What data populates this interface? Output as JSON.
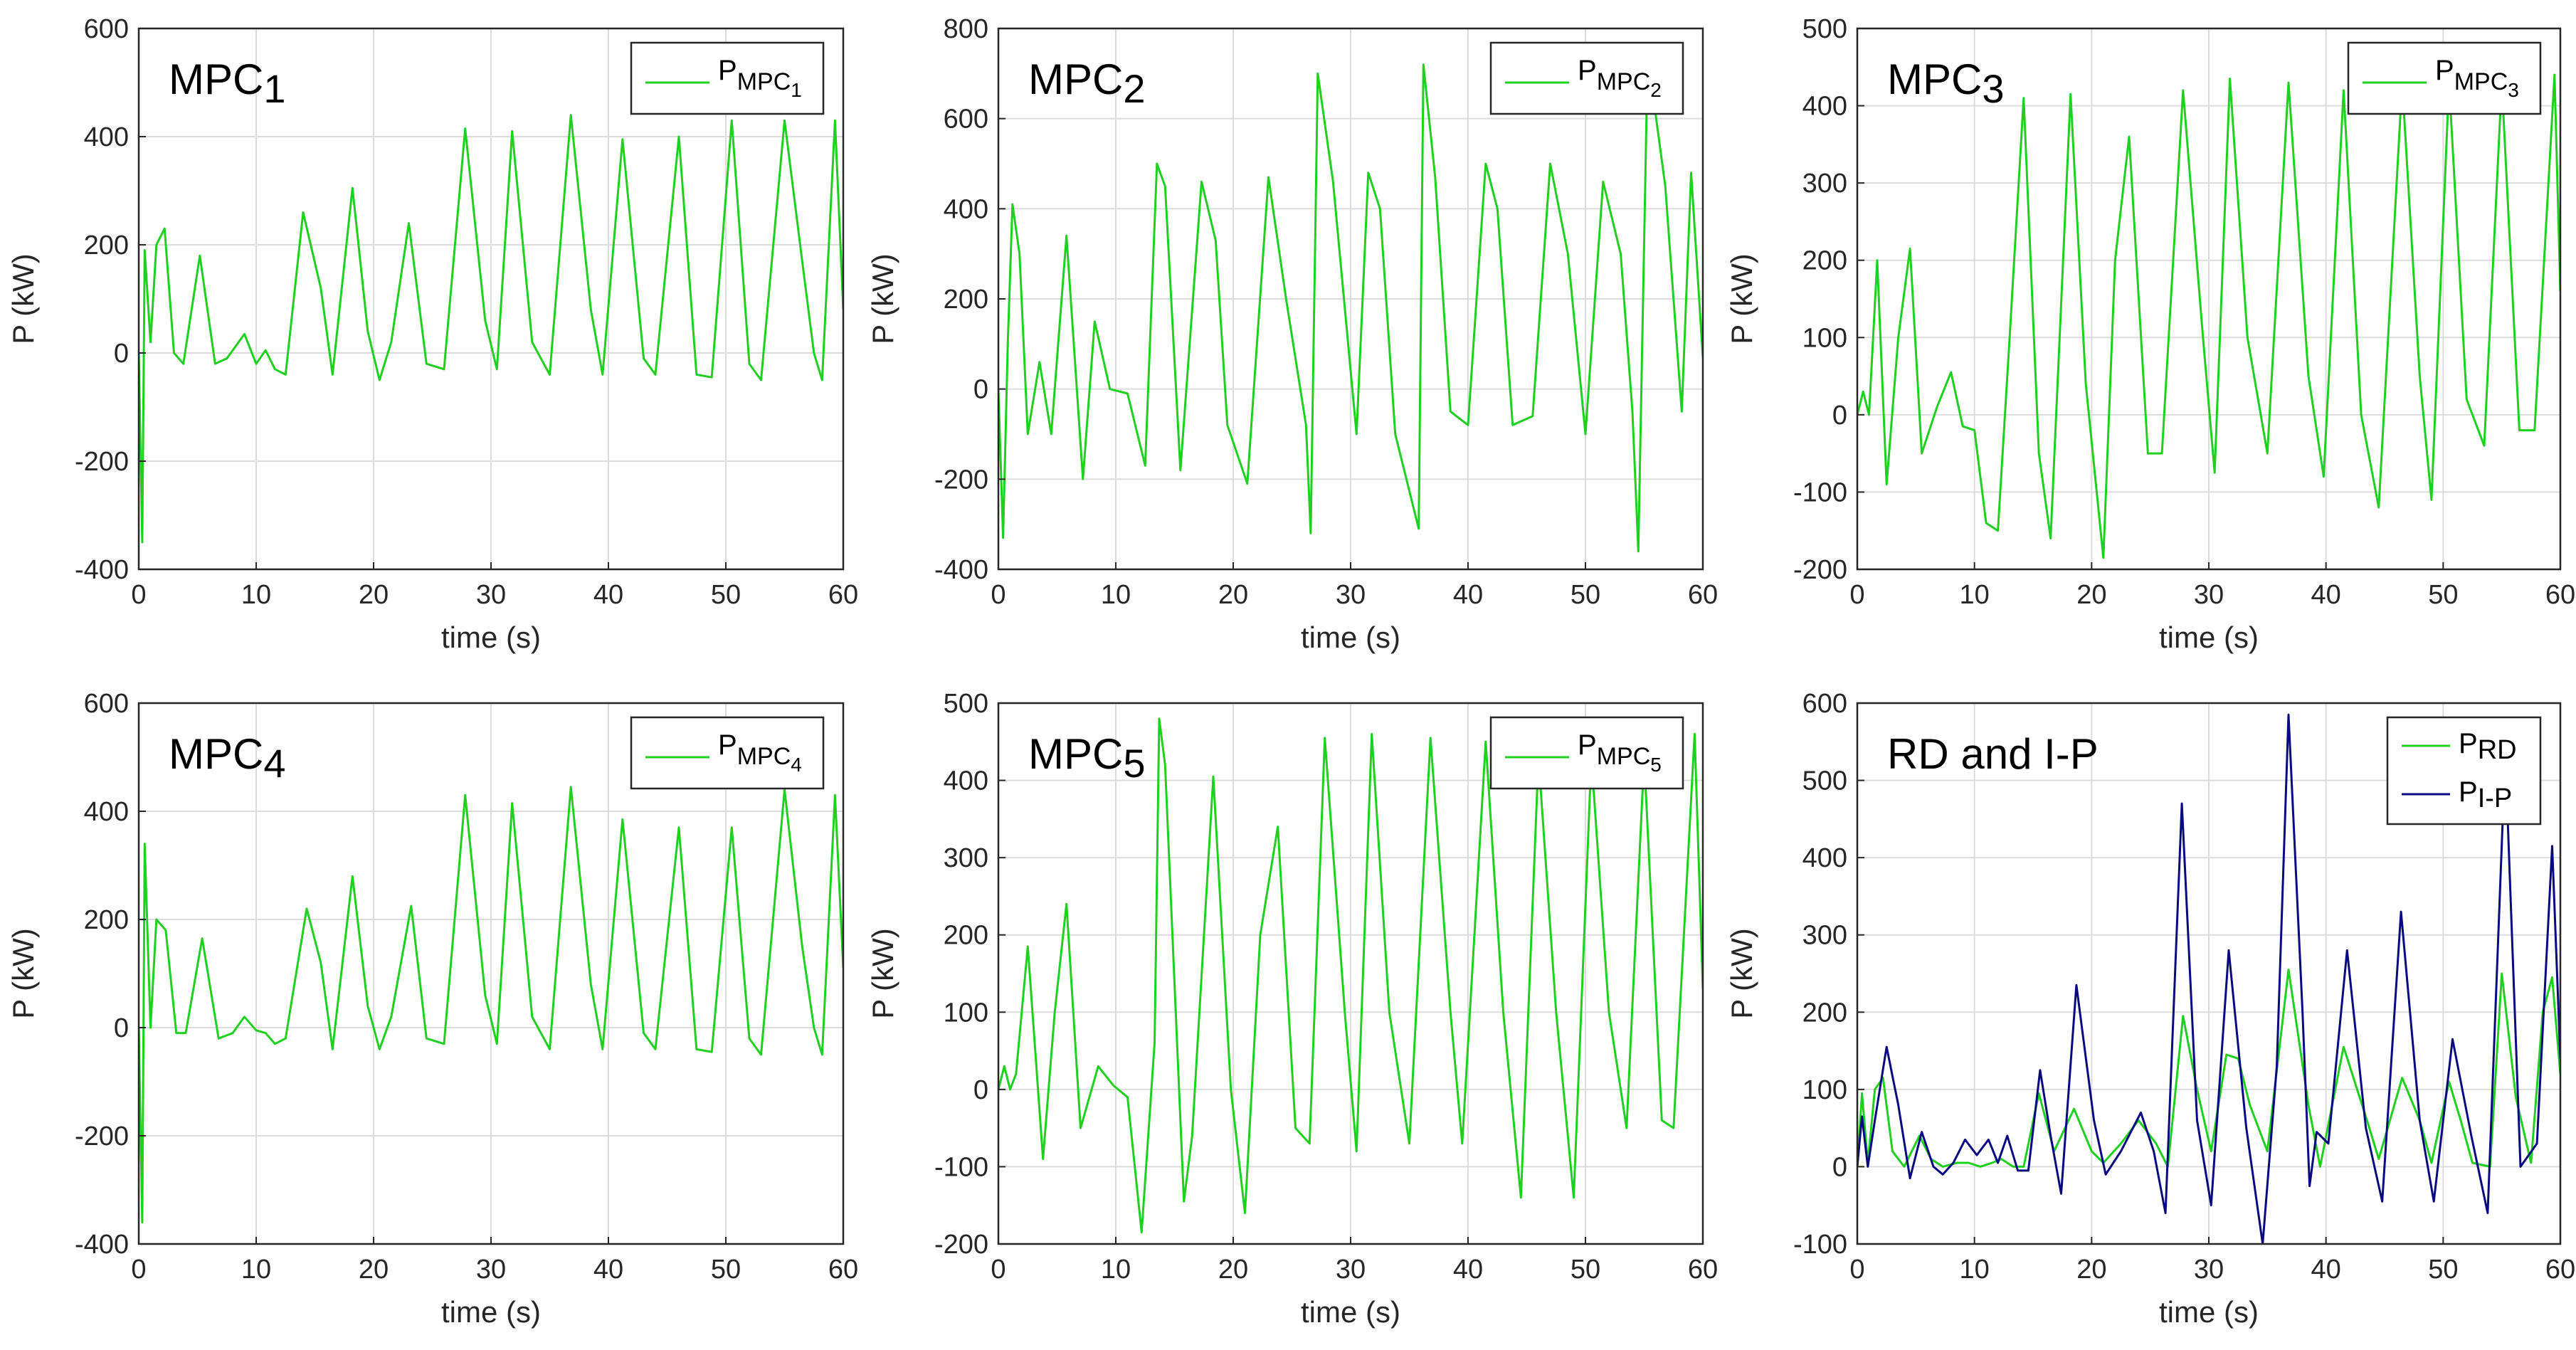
{
  "figure": {
    "colors": {
      "green": "#1fd11f",
      "navy": "#0a0a80",
      "grid": "#dcdcdc",
      "axis": "#262626"
    }
  },
  "chart_data": [
    {
      "type": "line",
      "title_main": "MPC",
      "title_sub": "1",
      "xlabel": "time (s)",
      "ylabel": "P (kW)",
      "xlim": [
        0,
        60
      ],
      "ylim": [
        -400,
        600
      ],
      "xticks": [
        0,
        10,
        20,
        30,
        40,
        50,
        60
      ],
      "yticks": [
        -400,
        -200,
        0,
        200,
        400,
        600
      ],
      "grid": true,
      "legend_position": "top-right",
      "series": [
        {
          "name": "P",
          "sub": "MPC",
          "subsub": "1",
          "color": "#1fd11f",
          "x": [
            0,
            0.3,
            0.5,
            1,
            1.5,
            2.2,
            3,
            3.8,
            5.2,
            6.5,
            7.5,
            9,
            10,
            10.8,
            11.6,
            12.5,
            14,
            15.5,
            16.5,
            18.2,
            19.5,
            20.5,
            21.5,
            23,
            24.5,
            26,
            27.8,
            29.5,
            30.5,
            31.8,
            33.5,
            35,
            36.8,
            38.5,
            39.5,
            41.2,
            43,
            44,
            46,
            47.5,
            48.8,
            50.5,
            52,
            53,
            55,
            56.5,
            57.5,
            58.2,
            59.3,
            60
          ],
          "y": [
            0,
            -350,
            190,
            20,
            200,
            230,
            0,
            -20,
            180,
            -20,
            -10,
            35,
            -20,
            5,
            -30,
            -40,
            260,
            120,
            -40,
            305,
            40,
            -50,
            20,
            240,
            -20,
            -30,
            415,
            60,
            -30,
            410,
            20,
            -40,
            440,
            80,
            -40,
            395,
            -10,
            -40,
            400,
            -40,
            -45,
            430,
            -20,
            -50,
            430,
            170,
            0,
            -50,
            430,
            80
          ]
        }
      ]
    },
    {
      "type": "line",
      "title_main": "MPC",
      "title_sub": "2",
      "xlabel": "time (s)",
      "ylabel": "P (kW)",
      "xlim": [
        0,
        60
      ],
      "ylim": [
        -400,
        800
      ],
      "xticks": [
        0,
        10,
        20,
        30,
        40,
        50,
        60
      ],
      "yticks": [
        -400,
        -200,
        0,
        200,
        400,
        600,
        800
      ],
      "grid": true,
      "legend_position": "top-right",
      "series": [
        {
          "name": "P",
          "sub": "MPC",
          "subsub": "2",
          "color": "#1fd11f",
          "x": [
            0,
            0.4,
            0.8,
            1.2,
            1.8,
            2.5,
            3.5,
            4.5,
            5.8,
            7.2,
            8.2,
            9.5,
            11,
            12.5,
            13.5,
            14.2,
            15.5,
            17.3,
            18.5,
            19.5,
            21.2,
            23,
            24.5,
            26.2,
            26.6,
            27.2,
            28.5,
            30.5,
            31.5,
            32.5,
            33.8,
            35.8,
            36.2,
            37.2,
            38.5,
            40,
            41.5,
            42.5,
            43.8,
            45.5,
            47,
            48.5,
            50,
            51.5,
            53,
            54,
            54.5,
            55.3,
            56.8,
            58.2,
            59,
            60
          ],
          "y": [
            0,
            -330,
            100,
            410,
            300,
            -100,
            60,
            -100,
            340,
            -200,
            150,
            0,
            -10,
            -170,
            500,
            450,
            -180,
            460,
            330,
            -80,
            -210,
            470,
            200,
            -80,
            -320,
            700,
            460,
            -100,
            480,
            400,
            -100,
            -310,
            720,
            470,
            -50,
            -80,
            500,
            400,
            -80,
            -60,
            500,
            300,
            -100,
            460,
            300,
            -50,
            -360,
            740,
            450,
            -50,
            480,
            70
          ]
        }
      ]
    },
    {
      "type": "line",
      "title_main": "MPC",
      "title_sub": "3",
      "xlabel": "time (s)",
      "ylabel": "P (kW)",
      "xlim": [
        0,
        60
      ],
      "ylim": [
        -200,
        500
      ],
      "xticks": [
        0,
        10,
        20,
        30,
        40,
        50,
        60
      ],
      "yticks": [
        -200,
        -100,
        0,
        100,
        200,
        300,
        400,
        500
      ],
      "grid": true,
      "legend_position": "top-right",
      "series": [
        {
          "name": "P",
          "sub": "MPC",
          "subsub": "3",
          "color": "#1fd11f",
          "x": [
            0,
            0.5,
            1,
            1.7,
            2.5,
            3.5,
            4.5,
            5.5,
            6.8,
            8,
            9,
            10,
            11,
            12,
            13,
            14.2,
            15.5,
            16.5,
            18.2,
            19.5,
            21,
            22,
            23.2,
            24.8,
            26,
            27.8,
            29.5,
            30.5,
            31.8,
            33.3,
            35,
            36.8,
            38.5,
            39.8,
            41.5,
            43,
            44.5,
            46.5,
            48,
            49,
            50.5,
            52,
            53.5,
            55,
            56.5,
            57.8,
            59.5,
            60
          ],
          "y": [
            0,
            30,
            0,
            200,
            -90,
            100,
            215,
            -50,
            10,
            55,
            -15,
            -20,
            -140,
            -150,
            100,
            410,
            -50,
            -160,
            415,
            40,
            -185,
            200,
            360,
            -50,
            -50,
            420,
            100,
            -75,
            435,
            100,
            -50,
            430,
            50,
            -80,
            420,
            0,
            -120,
            430,
            50,
            -110,
            430,
            20,
            -40,
            430,
            -20,
            -20,
            440,
            160
          ]
        }
      ]
    },
    {
      "type": "line",
      "title_main": "MPC",
      "title_sub": "4",
      "xlabel": "time (s)",
      "ylabel": "P (kW)",
      "xlim": [
        0,
        60
      ],
      "ylim": [
        -400,
        600
      ],
      "xticks": [
        0,
        10,
        20,
        30,
        40,
        50,
        60
      ],
      "yticks": [
        -400,
        -200,
        0,
        200,
        400,
        600
      ],
      "grid": true,
      "legend_position": "top-right",
      "series": [
        {
          "name": "P",
          "sub": "MPC",
          "subsub": "4",
          "color": "#1fd11f",
          "x": [
            0,
            0.3,
            0.5,
            1,
            1.5,
            2.3,
            3.2,
            4,
            5.4,
            6.8,
            8,
            9,
            10,
            10.8,
            11.6,
            12.5,
            14.3,
            15.5,
            16.5,
            18.2,
            19.5,
            20.5,
            21.5,
            23.2,
            24.5,
            26,
            27.8,
            29.5,
            30.5,
            31.8,
            33.5,
            35,
            36.8,
            38.5,
            39.5,
            41.2,
            43,
            44,
            46,
            47.5,
            48.8,
            50.5,
            52,
            53,
            55,
            56.5,
            57.5,
            58.2,
            59.3,
            60
          ],
          "y": [
            0,
            -360,
            340,
            0,
            200,
            180,
            -10,
            -10,
            165,
            -20,
            -10,
            20,
            -5,
            -10,
            -30,
            -20,
            220,
            120,
            -40,
            280,
            40,
            -40,
            20,
            225,
            -20,
            -30,
            430,
            60,
            -30,
            415,
            20,
            -40,
            445,
            80,
            -40,
            385,
            -10,
            -40,
            370,
            -40,
            -45,
            370,
            -20,
            -50,
            440,
            150,
            0,
            -50,
            430,
            110
          ]
        }
      ]
    },
    {
      "type": "line",
      "title_main": "MPC",
      "title_sub": "5",
      "xlabel": "time (s)",
      "ylabel": "P (kW)",
      "xlim": [
        0,
        60
      ],
      "ylim": [
        -200,
        500
      ],
      "xticks": [
        0,
        10,
        20,
        30,
        40,
        50,
        60
      ],
      "yticks": [
        -200,
        -100,
        0,
        100,
        200,
        300,
        400,
        500
      ],
      "grid": true,
      "legend_position": "top-right",
      "series": [
        {
          "name": "P",
          "sub": "MPC",
          "subsub": "5",
          "color": "#1fd11f",
          "x": [
            0,
            0.5,
            1,
            1.5,
            2.5,
            3.8,
            4.8,
            5.8,
            7,
            8.5,
            9.8,
            11,
            12.2,
            13.3,
            13.7,
            14.2,
            15.8,
            16.5,
            18.3,
            19.8,
            21,
            22.3,
            23.8,
            25.3,
            26.5,
            27.8,
            29.5,
            30.5,
            31.8,
            33.3,
            35,
            36.8,
            38.5,
            39.5,
            41.5,
            43,
            44.5,
            46,
            47.5,
            49,
            50.5,
            52,
            53.5,
            55,
            56.5,
            57.5,
            59.3,
            60
          ],
          "y": [
            0,
            30,
            0,
            20,
            185,
            -90,
            100,
            240,
            -50,
            30,
            5,
            -10,
            -185,
            60,
            480,
            420,
            -145,
            -60,
            405,
            0,
            -160,
            200,
            340,
            -50,
            -70,
            455,
            100,
            -80,
            460,
            100,
            -70,
            455,
            100,
            -70,
            450,
            100,
            -140,
            430,
            100,
            -140,
            430,
            100,
            -50,
            430,
            -40,
            -50,
            460,
            130
          ]
        }
      ]
    },
    {
      "type": "line",
      "title_main": "RD and I-P",
      "title_sub": "",
      "xlabel": "time (s)",
      "ylabel": "P (kW)",
      "xlim": [
        0,
        60
      ],
      "ylim": [
        -100,
        600
      ],
      "xticks": [
        0,
        10,
        20,
        30,
        40,
        50,
        60
      ],
      "yticks": [
        -100,
        0,
        100,
        200,
        300,
        400,
        500,
        600
      ],
      "grid": true,
      "legend_position": "top-right",
      "series": [
        {
          "name": "P",
          "sub": "RD",
          "subsub": "",
          "color": "#1fd11f",
          "x": [
            0,
            0.4,
            0.9,
            1.5,
            2.2,
            3,
            4,
            5.3,
            6.3,
            7.3,
            8.5,
            9.5,
            10.5,
            11.5,
            12.3,
            13.3,
            14.2,
            15.5,
            16.8,
            18.5,
            20,
            21,
            22.5,
            24,
            25.5,
            26.5,
            27.8,
            29,
            30.2,
            31.5,
            32.5,
            33.5,
            35,
            36.8,
            38.5,
            39.5,
            41.5,
            43.5,
            44.5,
            46.5,
            48,
            49,
            50.5,
            51.5,
            52.5,
            54,
            55,
            56.2,
            57.5,
            58.5,
            59.3,
            60
          ],
          "y": [
            0,
            95,
            5,
            100,
            115,
            20,
            0,
            40,
            10,
            0,
            5,
            5,
            0,
            5,
            10,
            0,
            0,
            95,
            20,
            75,
            20,
            5,
            30,
            60,
            30,
            0,
            195,
            100,
            20,
            145,
            140,
            80,
            20,
            255,
            80,
            0,
            155,
            60,
            10,
            115,
            60,
            5,
            110,
            60,
            5,
            0,
            250,
            90,
            5,
            200,
            245,
            120
          ]
        },
        {
          "name": "P",
          "sub": "I-P",
          "subsub": "",
          "color": "#0a0a80",
          "x": [
            0,
            0.4,
            0.9,
            1.5,
            2.5,
            3.5,
            4.5,
            5.5,
            6.5,
            7.3,
            8.2,
            9.2,
            10.2,
            11.2,
            12,
            12.8,
            13.7,
            14.6,
            15.6,
            16.5,
            17.4,
            18.7,
            20.2,
            21.2,
            22.5,
            24.2,
            25.3,
            26.3,
            27.7,
            29,
            30.2,
            31.7,
            33.2,
            34.6,
            35.8,
            36.8,
            38,
            38.6,
            39.2,
            40.2,
            41.8,
            43.4,
            44.8,
            46.4,
            48,
            49.2,
            50.8,
            52.4,
            53.8,
            55.3,
            56.6,
            58,
            59.3,
            60
          ],
          "y": [
            0,
            65,
            0,
            60,
            155,
            80,
            -15,
            45,
            0,
            -10,
            5,
            35,
            15,
            35,
            5,
            40,
            -5,
            -5,
            125,
            40,
            -35,
            235,
            60,
            -10,
            20,
            70,
            20,
            -60,
            470,
            60,
            -50,
            280,
            50,
            -100,
            130,
            585,
            200,
            -25,
            45,
            30,
            280,
            50,
            -45,
            330,
            60,
            -45,
            165,
            40,
            -60,
            535,
            0,
            30,
            415,
            140
          ]
        }
      ]
    }
  ]
}
